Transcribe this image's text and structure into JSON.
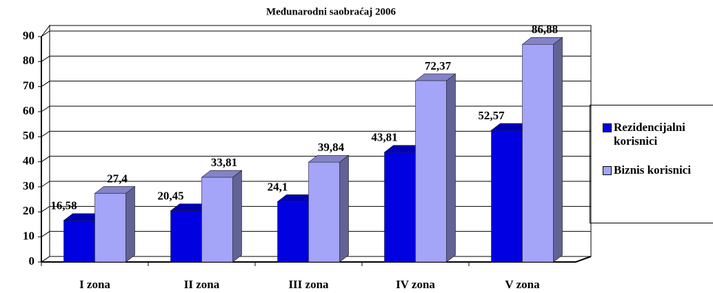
{
  "chart_data": {
    "type": "bar3d",
    "title": "Međunarodni saobraćaj 2006",
    "categories": [
      "I zona",
      "II zona",
      "III zona",
      "IV zona",
      "V zona"
    ],
    "series": [
      {
        "name": "Rezidencijalni korisnici",
        "color": "#0000e0",
        "values": [
          16.58,
          20.45,
          24.1,
          43.81,
          52.57
        ],
        "value_labels": [
          "16,58",
          "20,45",
          "24,1",
          "43,81",
          "52,57"
        ]
      },
      {
        "name": "Biznis korisnici",
        "color": "#a4a4f8",
        "values": [
          27.4,
          33.81,
          39.84,
          72.37,
          86.88
        ],
        "value_labels": [
          "27,4",
          "33,81",
          "39,84",
          "72,37",
          "86,88"
        ]
      }
    ],
    "ylim": [
      0,
      90
    ],
    "yticks": [
      0,
      10,
      20,
      30,
      40,
      50,
      60,
      70,
      80,
      90
    ],
    "grid": true,
    "legend": "right"
  }
}
